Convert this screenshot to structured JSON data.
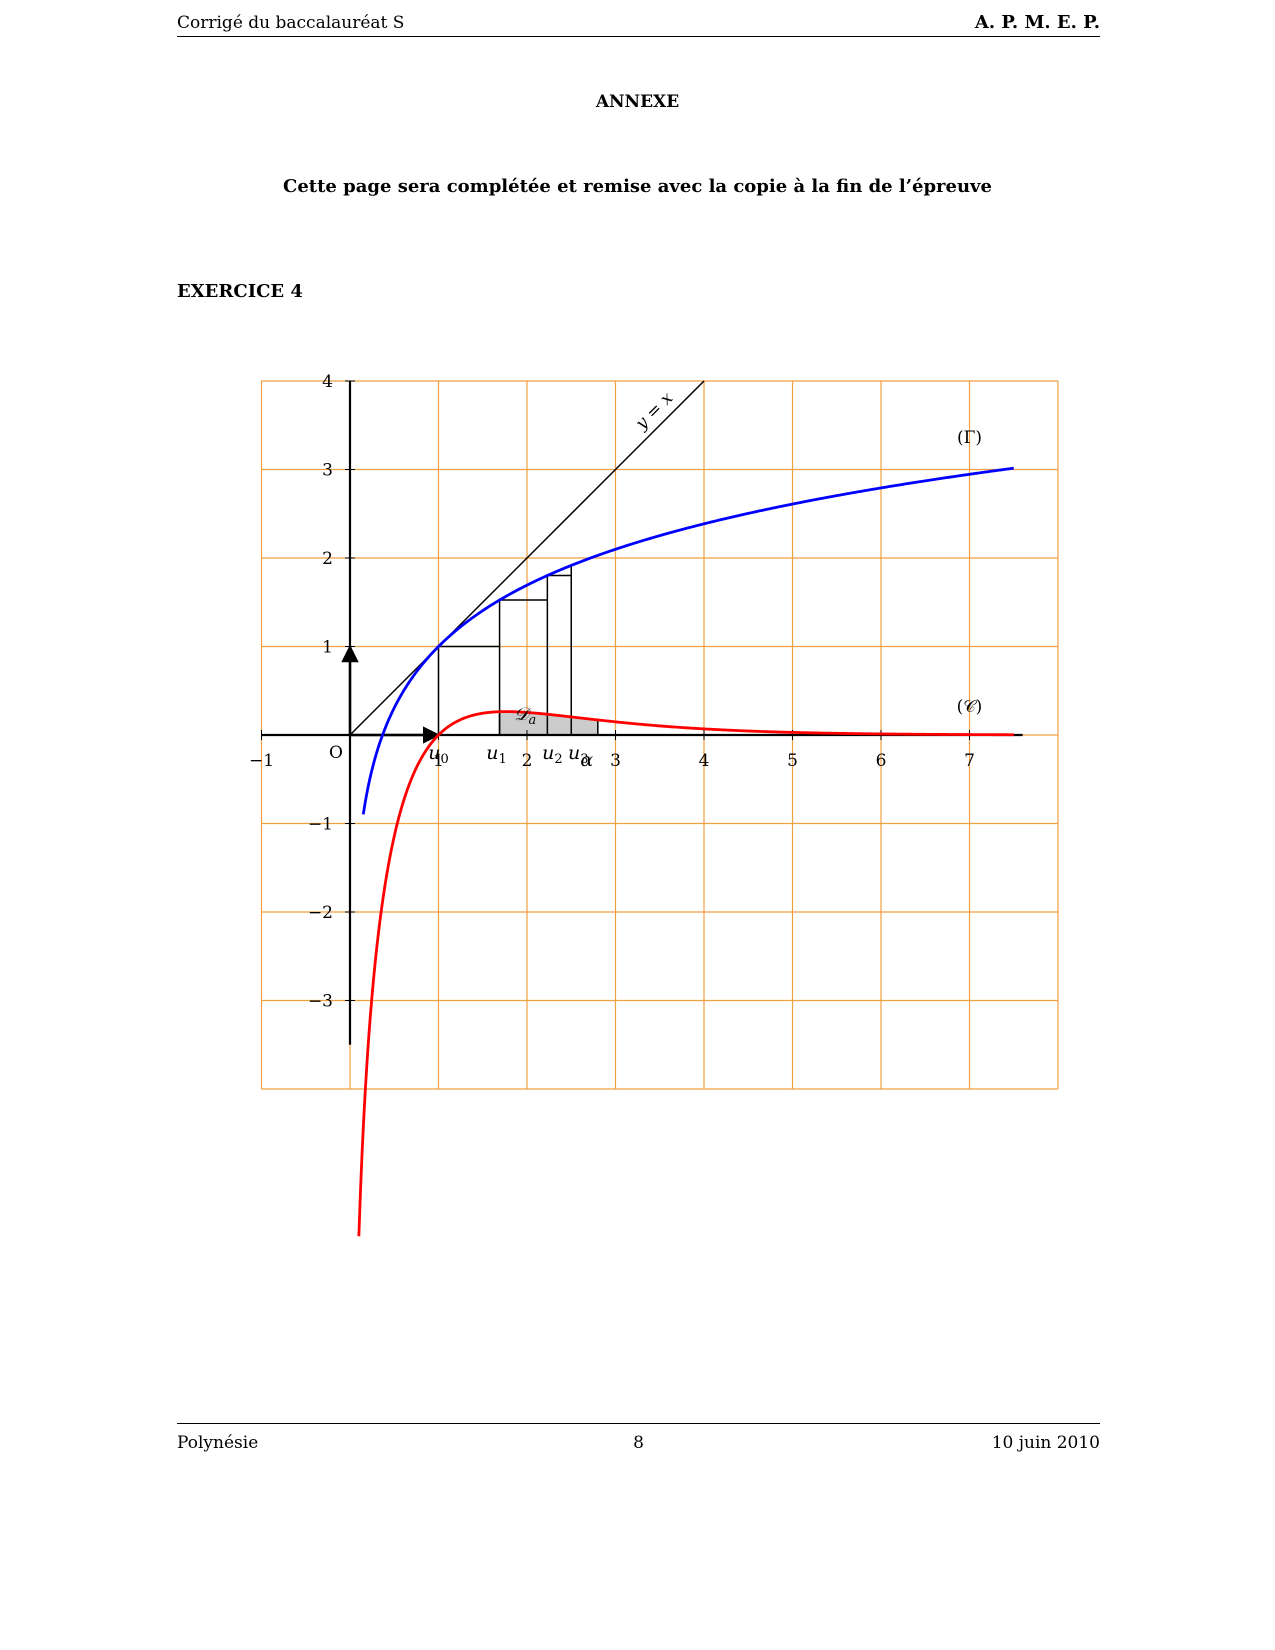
{
  "header": {
    "left": "Corrigé du baccalauréat S",
    "right": "A. P. M. E. P."
  },
  "annex_title": "ANNEXE",
  "instruction": "Cette page sera complétée et remise avec la copie à la fin de l’épreuve",
  "exercise_title": "EXERCICE 4",
  "footer": {
    "left": "Polynésie",
    "center": "8",
    "right": "10 juin 2010"
  },
  "chart_data": {
    "type": "line",
    "xlim": [
      -1,
      8
    ],
    "ylim": [
      -4,
      4
    ],
    "grid": true,
    "colors": {
      "grid": "#f0a040",
      "gamma": "#0000ff",
      "c_curve": "#ff0000",
      "axes": "#000000",
      "shade": "#cccccc"
    },
    "x_ticks": [
      -1,
      1,
      2,
      3,
      4,
      5,
      6,
      7
    ],
    "x_tick_labels": [
      "−1",
      "1",
      "2",
      "3",
      "4",
      "5",
      "6",
      "7"
    ],
    "y_ticks": [
      4,
      3,
      2,
      1,
      -1,
      -2,
      -3
    ],
    "y_tick_labels": [
      "4",
      "3",
      "2",
      "1",
      "−1",
      "−2",
      "−3"
    ],
    "origin_label": "O",
    "series": [
      {
        "name": "(Γ)",
        "formula": "1 + ln(x)",
        "x_range": [
          0.15,
          7.5
        ],
        "color": "#0000ff"
      },
      {
        "name": "(𝒞)",
        "formula": "e^(1 - x) · ln(x)",
        "x_range": [
          0.1,
          7.5
        ],
        "color": "#ff0000"
      },
      {
        "name": "y = x",
        "formula": "x",
        "x_range": [
          0,
          4
        ],
        "color": "#000000"
      }
    ],
    "sequence": [
      {
        "label": "u",
        "index": "0",
        "x": 1.0
      },
      {
        "label": "u",
        "index": "1",
        "x": 1.69
      },
      {
        "label": "u",
        "index": "2",
        "x": 2.23
      },
      {
        "label": "u",
        "index": "3",
        "x": 2.5
      }
    ],
    "alpha": {
      "label": "α",
      "x": 2.8
    },
    "shaded_region": {
      "label": "𝒟",
      "subscript": "a",
      "x_range": [
        1.69,
        2.8
      ]
    }
  }
}
